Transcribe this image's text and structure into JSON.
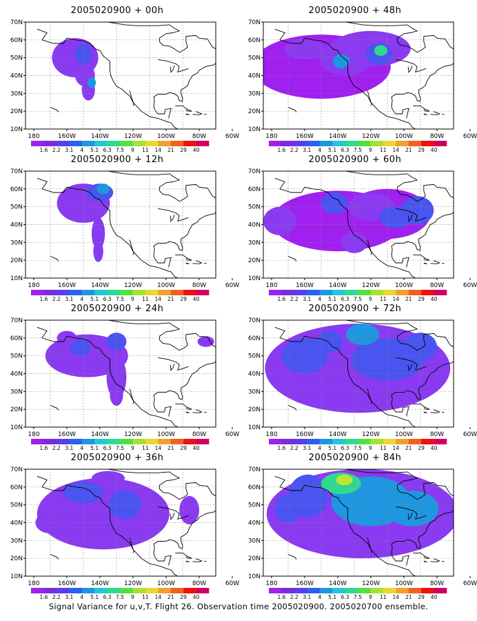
{
  "panels": [
    {
      "title": "2005020900 + 00h"
    },
    {
      "title": "2005020900 + 48h"
    },
    {
      "title": "2005020900 + 12h"
    },
    {
      "title": "2005020900 + 60h"
    },
    {
      "title": "2005020900 + 24h"
    },
    {
      "title": "2005020900 + 72h"
    },
    {
      "title": "2005020900 + 36h"
    },
    {
      "title": "2005020900 + 84h"
    }
  ],
  "lat_labels": [
    "70N",
    "60N",
    "50N",
    "40N",
    "30N",
    "20N",
    "10N"
  ],
  "lon_labels": [
    "180",
    "160W",
    "140W",
    "120W",
    "100W",
    "80W",
    "60W"
  ],
  "colorbar": {
    "labels": [
      "1.6",
      "2.2",
      "3.1",
      "4",
      "5.1",
      "6.3",
      "7.5",
      "9",
      "11",
      "14",
      "21",
      "29",
      "40"
    ],
    "colors": [
      "#a020f0",
      "#7a2cd6",
      "#5a3cf0",
      "#2a60f0",
      "#1e96e0",
      "#20c8d8",
      "#30d890",
      "#50e040",
      "#a8e030",
      "#e8d830",
      "#f0a030",
      "#f06020",
      "#f01010",
      "#d00060"
    ]
  },
  "footer": "Signal Variance for u,v,T. Flight 26. Observation time 2005020900. 2005020700 ensemble."
}
